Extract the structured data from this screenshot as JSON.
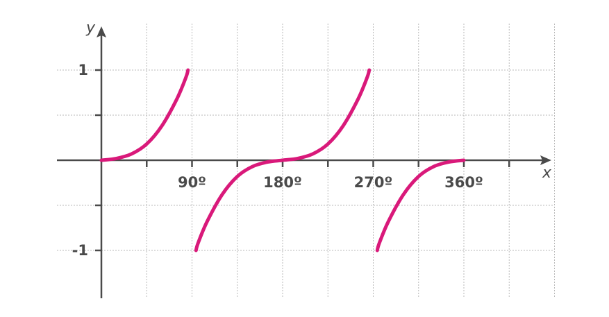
{
  "chart_data": {
    "type": "line",
    "xlabel": "x",
    "ylabel": "y",
    "xlim": [
      0,
      495
    ],
    "ylim": [
      -1.5,
      1.5
    ],
    "x_ticks": [
      {
        "value": 90,
        "label": "90º"
      },
      {
        "value": 180,
        "label": "180º"
      },
      {
        "value": 270,
        "label": "270º"
      },
      {
        "value": 360,
        "label": "360º"
      }
    ],
    "y_ticks": [
      {
        "value": 1,
        "label": "1"
      },
      {
        "value": -1,
        "label": "-1"
      }
    ],
    "minor_x_ticks": [
      45,
      90,
      135,
      180,
      225,
      270,
      315,
      360,
      405
    ],
    "minor_y_ticks": [
      1,
      0.5,
      -0.5,
      -1
    ],
    "grid": true,
    "colors": {
      "curve": "#d9197a",
      "axis": "#4a4a4a",
      "grid": "#b9b9b9"
    },
    "series": [
      {
        "segments": [
          {
            "x": [
              0,
              15,
              30,
              45,
              60,
              75,
              84,
              86
            ],
            "y": [
              0,
              0.02,
              0.07,
              0.18,
              0.38,
              0.68,
              0.92,
              1.0
            ]
          },
          {
            "x": [
              94,
              96,
              105,
              120,
              135,
              150,
              165,
              180,
              195,
              210,
              225,
              240,
              255,
              264,
              266
            ],
            "y": [
              -1.0,
              -0.92,
              -0.68,
              -0.38,
              -0.18,
              -0.07,
              -0.02,
              0,
              0.02,
              0.07,
              0.18,
              0.38,
              0.68,
              0.92,
              1.0
            ]
          },
          {
            "x": [
              274,
              276,
              285,
              300,
              315,
              330,
              345,
              360
            ],
            "y": [
              -1.0,
              -0.92,
              -0.68,
              -0.38,
              -0.18,
              -0.07,
              -0.02,
              0
            ]
          }
        ]
      }
    ]
  }
}
